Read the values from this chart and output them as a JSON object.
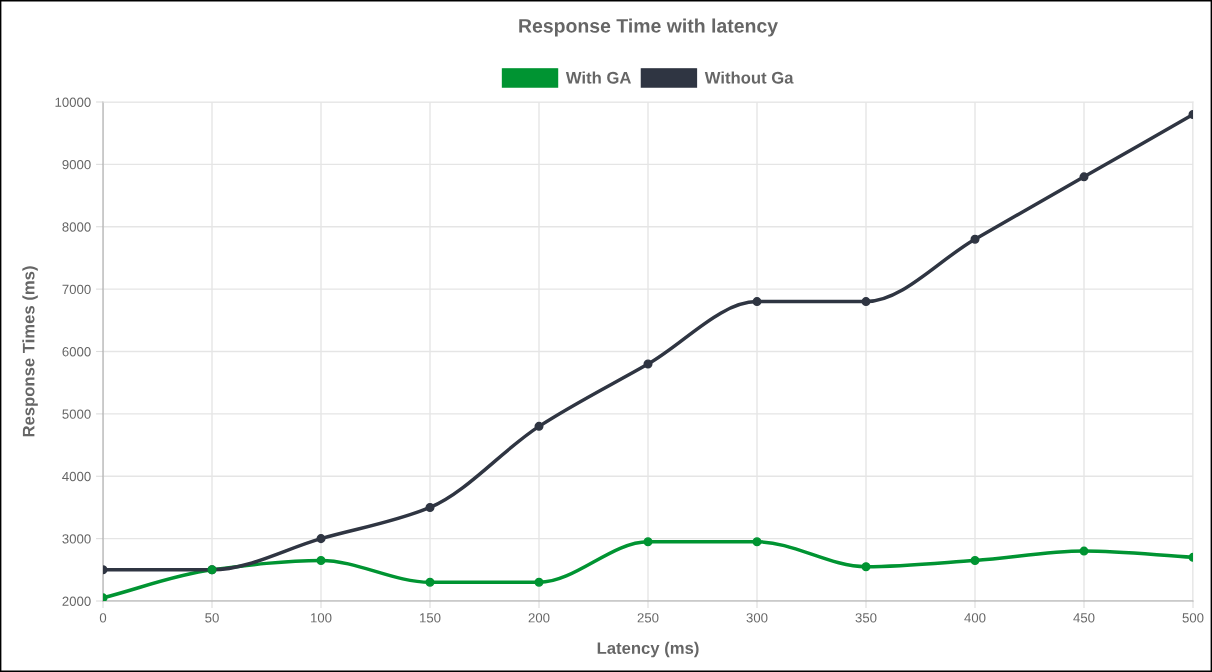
{
  "chart_data": {
    "type": "line",
    "title": "Response Time with latency",
    "xlabel": "Latency (ms)",
    "ylabel": "Response Times (ms)",
    "x": [
      0,
      50,
      100,
      150,
      200,
      250,
      300,
      350,
      400,
      450,
      500
    ],
    "series": [
      {
        "name": "With GA",
        "color": "#009432",
        "values": [
          2050,
          2500,
          2650,
          2300,
          2300,
          2950,
          2950,
          2550,
          2650,
          2800,
          2700
        ]
      },
      {
        "name": "Without Ga",
        "color": "#2f3542",
        "values": [
          2500,
          2500,
          3000,
          3500,
          4800,
          5800,
          6800,
          6800,
          7800,
          8800,
          9800
        ]
      }
    ],
    "xlim": [
      0,
      500
    ],
    "xticks": [
      0,
      50,
      100,
      150,
      200,
      250,
      300,
      350,
      400,
      450,
      500
    ],
    "ylim": [
      2000,
      10000
    ],
    "yticks": [
      2000,
      3000,
      4000,
      5000,
      6000,
      7000,
      8000,
      9000,
      10000
    ],
    "grid": true,
    "legend": "top",
    "marker": "circle",
    "line_style": "solid"
  }
}
